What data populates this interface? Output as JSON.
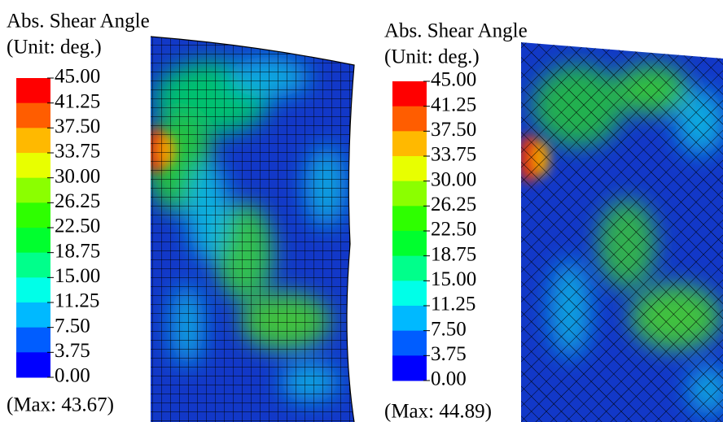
{
  "panels": [
    {
      "title": "Abs. Shear Angle",
      "unit": "(Unit: deg.)",
      "ticks": [
        "45.00",
        "41.25",
        "37.50",
        "33.75",
        "30.00",
        "26.25",
        "22.50",
        "18.75",
        "15.00",
        "11.25",
        "7.50",
        "3.75",
        "0.00"
      ],
      "max": "(Max: 43.67)"
    },
    {
      "title": "Abs. Shear Angle",
      "unit": "(Unit: deg.)",
      "ticks": [
        "45.00",
        "41.25",
        "37.50",
        "33.75",
        "30.00",
        "26.25",
        "22.50",
        "18.75",
        "15.00",
        "11.25",
        "7.50",
        "3.75",
        "0.00"
      ],
      "max": "(Max: 44.89)"
    }
  ]
}
